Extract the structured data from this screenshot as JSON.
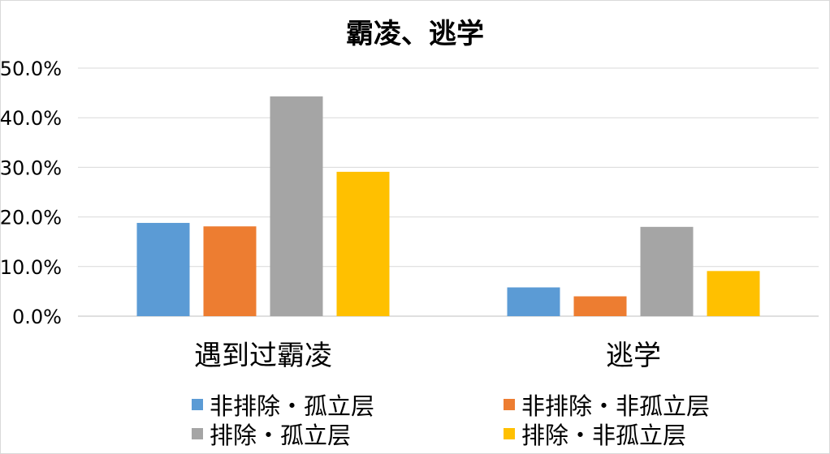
{
  "chart_data": {
    "type": "bar",
    "title": "霸凌、逃学",
    "xlabel": "",
    "ylabel": "",
    "categories": [
      "遇到过霸凌",
      "逃学"
    ],
    "series": [
      {
        "name": "非排除・孤立层",
        "values": [
          18.8,
          5.8
        ],
        "color": "#5b9bd5"
      },
      {
        "name": "非排除・非孤立层",
        "values": [
          18.1,
          4.0
        ],
        "color": "#ed7d31"
      },
      {
        "name": "排除・孤立层",
        "values": [
          44.3,
          18.0
        ],
        "color": "#a5a5a5"
      },
      {
        "name": "排除・非孤立层",
        "values": [
          29.1,
          9.1
        ],
        "color": "#ffc000"
      }
    ],
    "ylim": [
      0,
      50
    ],
    "yticks": [
      "0.0%",
      "10.0%",
      "20.0%",
      "30.0%",
      "40.0%",
      "50.0%"
    ],
    "grid": true,
    "legend_position": "bottom"
  }
}
